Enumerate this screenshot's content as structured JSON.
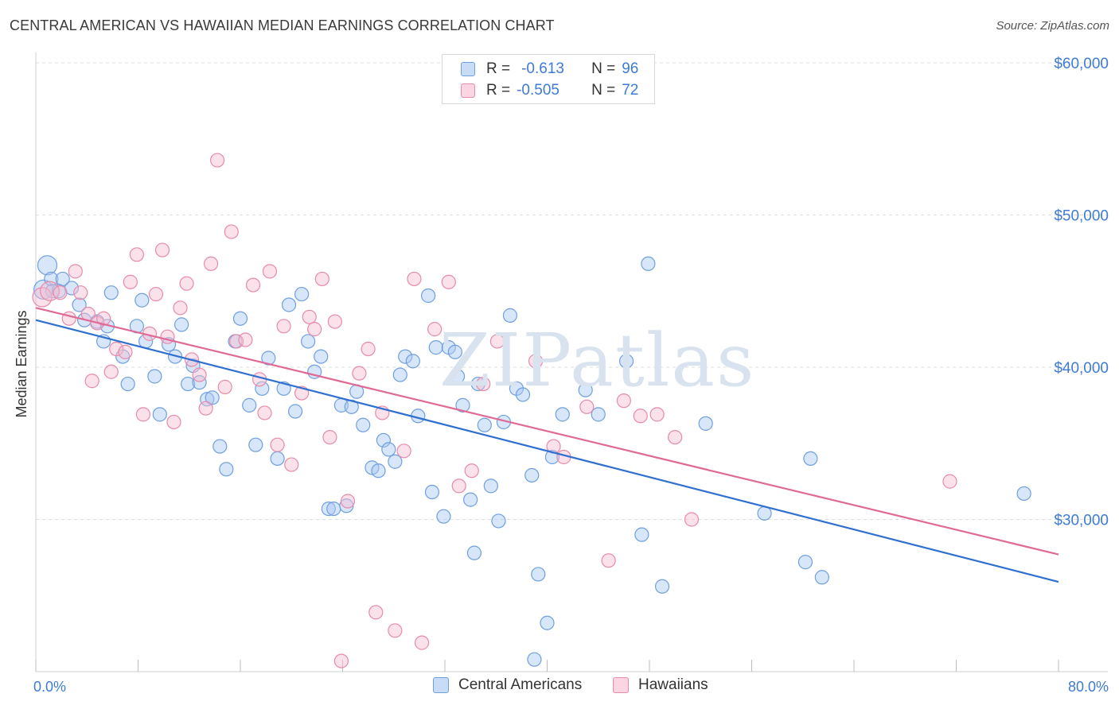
{
  "header": {
    "title": "CENTRAL AMERICAN VS HAWAIIAN MEDIAN EARNINGS CORRELATION CHART",
    "source": "Source: ZipAtlas.com"
  },
  "watermark": "ZIPatlas",
  "legend": {
    "rows": [
      {
        "r_label": "R =",
        "r_value": "-0.613",
        "n_label": "N =",
        "n_value": "96",
        "color": "#a9c8f1",
        "border": "#6f9fe0"
      },
      {
        "r_label": "R =",
        "r_value": "-0.505",
        "n_label": "N =",
        "n_value": "72",
        "color": "#f7bfd1",
        "border": "#e88aa9"
      }
    ]
  },
  "bottom_legend": {
    "items": [
      {
        "label": "Central Americans",
        "color": "#a9c8f1",
        "border": "#6f9fe0"
      },
      {
        "label": "Hawaiians",
        "color": "#f7bfd1",
        "border": "#e88aa9"
      }
    ]
  },
  "chart_data": {
    "type": "scatter",
    "title": "CENTRAL AMERICAN VS HAWAIIAN MEDIAN EARNINGS CORRELATION CHART",
    "xlabel": "",
    "ylabel": "Median Earnings",
    "xlim": [
      0,
      80
    ],
    "ylim": [
      20000,
      61000
    ],
    "x_tick_labels": [
      "0.0%",
      "80.0%"
    ],
    "y_ticks": [
      30000,
      40000,
      50000,
      60000
    ],
    "y_tick_labels": [
      "$30,000",
      "$40,000",
      "$50,000",
      "$60,000"
    ],
    "grid": true,
    "legend_position": "top-center",
    "series": [
      {
        "name": "Central Americans",
        "color": "#6f9fe0",
        "fill": "#a9c8f1",
        "line_color": "#2f6fd0",
        "trend": {
          "x": [
            0,
            80
          ],
          "y": [
            43100,
            25900
          ]
        },
        "points": [
          [
            0.6,
            45100
          ],
          [
            0.9,
            46700
          ],
          [
            1.2,
            45800
          ],
          [
            1.8,
            45000
          ],
          [
            2.8,
            45200
          ],
          [
            3.4,
            44100
          ],
          [
            3.8,
            43100
          ],
          [
            4.8,
            43000
          ],
          [
            5.3,
            41700
          ],
          [
            5.6,
            42700
          ],
          [
            5.9,
            44900
          ],
          [
            6.8,
            40700
          ],
          [
            7.2,
            38900
          ],
          [
            7.9,
            42700
          ],
          [
            8.3,
            44400
          ],
          [
            8.6,
            41700
          ],
          [
            9.3,
            39400
          ],
          [
            9.7,
            36900
          ],
          [
            10.4,
            41500
          ],
          [
            10.9,
            40700
          ],
          [
            11.4,
            42800
          ],
          [
            11.9,
            38900
          ],
          [
            12.3,
            40100
          ],
          [
            12.8,
            39000
          ],
          [
            13.4,
            37900
          ],
          [
            13.8,
            38000
          ],
          [
            14.4,
            34800
          ],
          [
            14.9,
            33300
          ],
          [
            15.6,
            41700
          ],
          [
            16.0,
            43200
          ],
          [
            16.7,
            37500
          ],
          [
            17.2,
            34900
          ],
          [
            17.7,
            38600
          ],
          [
            18.2,
            40600
          ],
          [
            18.9,
            34000
          ],
          [
            19.4,
            38600
          ],
          [
            19.8,
            44100
          ],
          [
            20.3,
            37100
          ],
          [
            20.8,
            44800
          ],
          [
            21.3,
            41700
          ],
          [
            21.8,
            39700
          ],
          [
            22.3,
            40700
          ],
          [
            22.9,
            30700
          ],
          [
            23.3,
            30700
          ],
          [
            23.9,
            37500
          ],
          [
            24.3,
            30900
          ],
          [
            24.7,
            37400
          ],
          [
            25.1,
            38400
          ],
          [
            25.6,
            36200
          ],
          [
            26.3,
            33400
          ],
          [
            26.8,
            33200
          ],
          [
            27.2,
            35200
          ],
          [
            27.6,
            34600
          ],
          [
            28.1,
            33800
          ],
          [
            28.5,
            39500
          ],
          [
            28.9,
            40700
          ],
          [
            29.5,
            40400
          ],
          [
            29.9,
            36800
          ],
          [
            30.7,
            44700
          ],
          [
            31.0,
            31800
          ],
          [
            31.3,
            41300
          ],
          [
            31.9,
            30200
          ],
          [
            32.3,
            41300
          ],
          [
            32.8,
            41000
          ],
          [
            33.0,
            39400
          ],
          [
            33.4,
            37500
          ],
          [
            34.0,
            31300
          ],
          [
            34.3,
            27800
          ],
          [
            34.6,
            38900
          ],
          [
            35.1,
            36200
          ],
          [
            35.6,
            32200
          ],
          [
            36.2,
            29900
          ],
          [
            36.6,
            36400
          ],
          [
            37.1,
            43400
          ],
          [
            37.6,
            38600
          ],
          [
            38.1,
            38200
          ],
          [
            38.8,
            32900
          ],
          [
            39.0,
            20800
          ],
          [
            39.3,
            26400
          ],
          [
            40.0,
            23200
          ],
          [
            40.4,
            34100
          ],
          [
            41.2,
            36900
          ],
          [
            43.0,
            38500
          ],
          [
            44.0,
            36900
          ],
          [
            46.2,
            40400
          ],
          [
            47.4,
            29000
          ],
          [
            47.9,
            46800
          ],
          [
            49.0,
            25600
          ],
          [
            52.4,
            36300
          ],
          [
            57.0,
            30400
          ],
          [
            60.2,
            27200
          ],
          [
            60.6,
            34000
          ],
          [
            61.5,
            26200
          ],
          [
            77.3,
            31700
          ],
          [
            2.1,
            45800
          ],
          [
            1.3,
            45000
          ]
        ]
      },
      {
        "name": "Hawaiians",
        "color": "#e88aa9",
        "fill": "#f7bfd1",
        "line_color": "#e06a95",
        "trend": {
          "x": [
            0,
            80
          ],
          "y": [
            43900,
            27700
          ]
        },
        "points": [
          [
            0.5,
            44600
          ],
          [
            1.1,
            45000
          ],
          [
            1.9,
            44900
          ],
          [
            2.6,
            43200
          ],
          [
            3.1,
            46300
          ],
          [
            3.5,
            44900
          ],
          [
            4.1,
            43500
          ],
          [
            4.4,
            39100
          ],
          [
            4.8,
            42900
          ],
          [
            5.3,
            43200
          ],
          [
            5.9,
            39700
          ],
          [
            6.3,
            41200
          ],
          [
            7.0,
            41000
          ],
          [
            7.4,
            45600
          ],
          [
            7.9,
            47400
          ],
          [
            8.4,
            36900
          ],
          [
            8.9,
            42200
          ],
          [
            9.4,
            44800
          ],
          [
            9.9,
            47700
          ],
          [
            10.3,
            42000
          ],
          [
            10.8,
            36400
          ],
          [
            11.3,
            43900
          ],
          [
            11.8,
            45500
          ],
          [
            12.2,
            40500
          ],
          [
            12.8,
            39500
          ],
          [
            13.3,
            37300
          ],
          [
            13.7,
            46800
          ],
          [
            14.2,
            53600
          ],
          [
            14.8,
            38700
          ],
          [
            15.3,
            48900
          ],
          [
            15.7,
            41700
          ],
          [
            16.4,
            41800
          ],
          [
            17.0,
            45400
          ],
          [
            17.5,
            39200
          ],
          [
            17.9,
            37000
          ],
          [
            18.3,
            46300
          ],
          [
            18.9,
            34900
          ],
          [
            19.4,
            42700
          ],
          [
            20.0,
            33600
          ],
          [
            20.8,
            38300
          ],
          [
            21.4,
            43300
          ],
          [
            21.8,
            42500
          ],
          [
            22.4,
            45800
          ],
          [
            23.0,
            35400
          ],
          [
            23.4,
            43000
          ],
          [
            23.9,
            20700
          ],
          [
            24.4,
            31200
          ],
          [
            25.3,
            39600
          ],
          [
            26.0,
            41200
          ],
          [
            26.6,
            23900
          ],
          [
            27.1,
            37000
          ],
          [
            28.1,
            22700
          ],
          [
            28.8,
            34500
          ],
          [
            29.6,
            45800
          ],
          [
            30.2,
            21900
          ],
          [
            31.2,
            42500
          ],
          [
            32.3,
            45600
          ],
          [
            33.1,
            32200
          ],
          [
            34.1,
            33200
          ],
          [
            35.0,
            38900
          ],
          [
            36.1,
            41700
          ],
          [
            39.1,
            40400
          ],
          [
            40.5,
            34800
          ],
          [
            41.3,
            34100
          ],
          [
            43.1,
            37400
          ],
          [
            44.8,
            27300
          ],
          [
            46.0,
            37800
          ],
          [
            47.3,
            36800
          ],
          [
            48.6,
            36900
          ],
          [
            50.0,
            35400
          ],
          [
            51.3,
            30000
          ],
          [
            71.5,
            32500
          ]
        ]
      }
    ]
  }
}
